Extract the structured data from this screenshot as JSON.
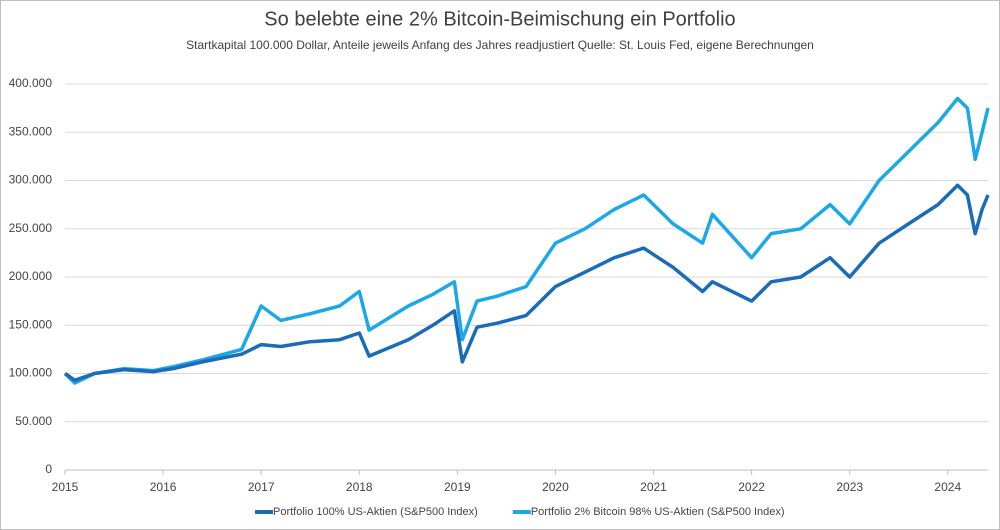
{
  "chart_data": {
    "type": "line",
    "title": "So belebte eine 2% Bitcoin-Beimischung ein Portfolio",
    "subtitle": "Startkapital 100.000 Dollar, Anteile jeweils Anfang des Jahres readjustiert Quelle: St. Louis Fed, eigene Berechnungen",
    "x": [
      2015.0,
      2015.1,
      2015.3,
      2015.6,
      2015.9,
      2016.1,
      2016.4,
      2016.8,
      2017.0,
      2017.2,
      2017.5,
      2017.8,
      2018.0,
      2018.1,
      2018.5,
      2018.75,
      2018.97,
      2019.05,
      2019.2,
      2019.4,
      2019.7,
      2020.0,
      2020.3,
      2020.6,
      2020.9,
      2021.2,
      2021.5,
      2021.6,
      2022.0,
      2022.2,
      2022.5,
      2022.8,
      2023.0,
      2023.3,
      2023.6,
      2023.9,
      2024.1,
      2024.2,
      2024.28,
      2024.35,
      2024.41
    ],
    "series": [
      {
        "name": "Portfolio 100% US-Aktien (S&P500 Index)",
        "color": "#1a6bb8",
        "values": [
          100000,
          93000,
          100000,
          104000,
          102000,
          105000,
          112000,
          120000,
          130000,
          128000,
          133000,
          135000,
          142000,
          118000,
          135000,
          150000,
          165000,
          112000,
          148000,
          152000,
          160000,
          190000,
          205000,
          220000,
          230000,
          210000,
          185000,
          195000,
          175000,
          195000,
          200000,
          220000,
          200000,
          235000,
          255000,
          275000,
          295000,
          285000,
          245000,
          270000,
          285000
        ]
      },
      {
        "name": "Portfolio 2% Bitcoin 98% US-Aktien (S&P500 Index)",
        "color": "#1ba8e8",
        "values": [
          100000,
          90000,
          100000,
          105000,
          103000,
          107000,
          114000,
          125000,
          170000,
          155000,
          162000,
          170000,
          185000,
          145000,
          170000,
          182000,
          195000,
          135000,
          175000,
          180000,
          190000,
          235000,
          250000,
          270000,
          285000,
          255000,
          235000,
          265000,
          220000,
          245000,
          250000,
          275000,
          255000,
          300000,
          330000,
          360000,
          385000,
          375000,
          322000,
          350000,
          375000
        ]
      }
    ],
    "xlim": [
      2015,
      2024.41
    ],
    "xticks": [
      2015,
      2016,
      2017,
      2018,
      2019,
      2020,
      2021,
      2022,
      2023,
      2024
    ],
    "ylim": [
      0,
      400000
    ],
    "yticks": [
      0,
      {
        "value": 50000,
        "label": "50.000"
      },
      {
        "value": 100000,
        "label": "100.000"
      },
      {
        "value": 150000,
        "label": "150.000"
      },
      {
        "value": 200000,
        "label": "200.000"
      },
      {
        "value": 250000,
        "label": "250.000"
      },
      {
        "value": 300000,
        "label": "300.000"
      },
      {
        "value": 350000,
        "label": "350.000"
      },
      {
        "value": 400000,
        "label": "400.000"
      }
    ],
    "grid": true
  }
}
